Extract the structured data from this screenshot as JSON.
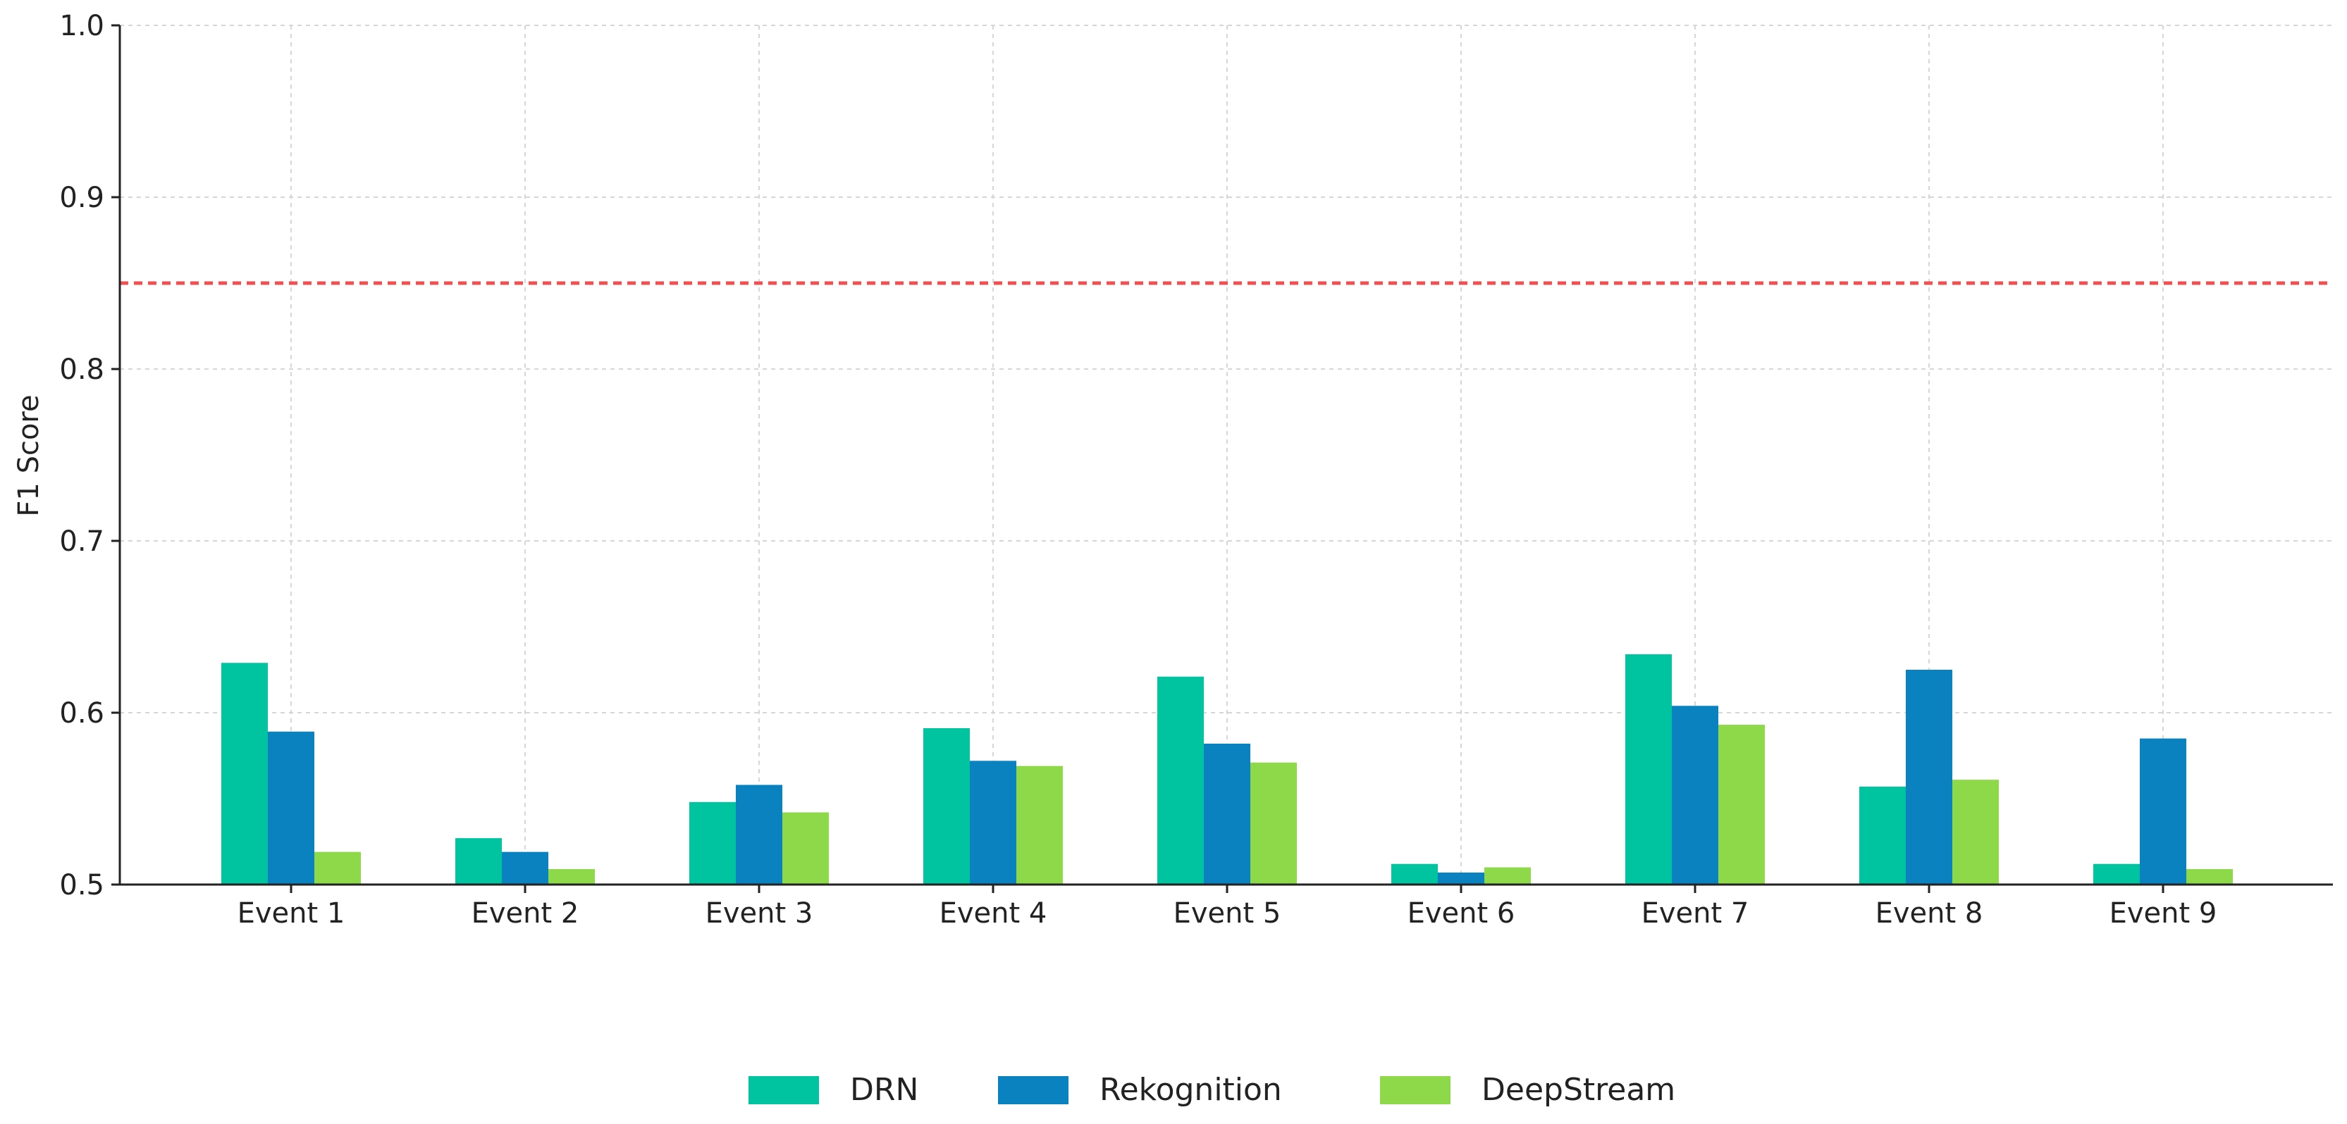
{
  "chart_data": {
    "type": "bar",
    "title": "",
    "xlabel": "",
    "ylabel": "F1 Score",
    "ylim": [
      0.5,
      1.0
    ],
    "yticks": [
      "0.5",
      "0.6",
      "0.7",
      "0.8",
      "0.9",
      "1.0"
    ],
    "categories": [
      "Event 1",
      "Event 2",
      "Event 3",
      "Event 4",
      "Event 5",
      "Event 6",
      "Event 7",
      "Event 8",
      "Event 9"
    ],
    "series": [
      {
        "name": "DRN",
        "color": "#00c3a0",
        "values": [
          0.629,
          0.527,
          0.548,
          0.591,
          0.621,
          0.512,
          0.634,
          0.557,
          0.512
        ]
      },
      {
        "name": "Rekognition",
        "color": "#0a82c0",
        "values": [
          0.589,
          0.519,
          0.558,
          0.572,
          0.582,
          0.507,
          0.604,
          0.625,
          0.585
        ]
      },
      {
        "name": "DeepStream",
        "color": "#8ed94a",
        "values": [
          0.519,
          0.509,
          0.542,
          0.569,
          0.571,
          0.51,
          0.593,
          0.561,
          0.509
        ]
      }
    ],
    "reference_line": {
      "value": 0.85,
      "color": "#f05050",
      "style": "dashed"
    },
    "grid": true,
    "legend": "bottom-center"
  }
}
